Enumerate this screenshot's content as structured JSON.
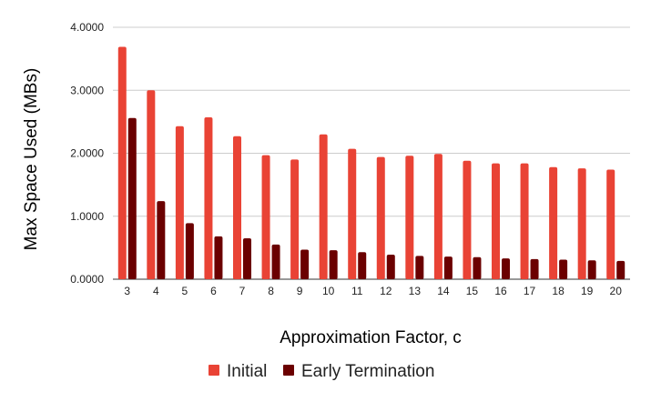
{
  "chart_data": {
    "type": "bar",
    "title": "",
    "xlabel": "Approximation Factor, c",
    "ylabel": "Max Space Used (MBs)",
    "categories": [
      "3",
      "4",
      "5",
      "6",
      "7",
      "8",
      "9",
      "10",
      "11",
      "12",
      "13",
      "14",
      "15",
      "16",
      "17",
      "18",
      "19",
      "20"
    ],
    "series": [
      {
        "name": "Initial",
        "color": "#e94335",
        "values": [
          3.69,
          3.0,
          2.43,
          2.57,
          2.27,
          1.97,
          1.9,
          2.3,
          2.07,
          1.94,
          1.96,
          1.99,
          1.88,
          1.84,
          1.84,
          1.78,
          1.76,
          1.74
        ]
      },
      {
        "name": "Early Termination",
        "color": "#6b0000",
        "values": [
          2.56,
          1.24,
          0.89,
          0.68,
          0.65,
          0.55,
          0.47,
          0.46,
          0.43,
          0.39,
          0.37,
          0.36,
          0.35,
          0.33,
          0.32,
          0.31,
          0.3,
          0.29
        ]
      }
    ],
    "ylim": [
      0,
      4
    ],
    "yticks": [
      "0.0000",
      "1.0000",
      "2.0000",
      "3.0000",
      "4.0000"
    ],
    "grid": true,
    "legend_position": "bottom"
  }
}
